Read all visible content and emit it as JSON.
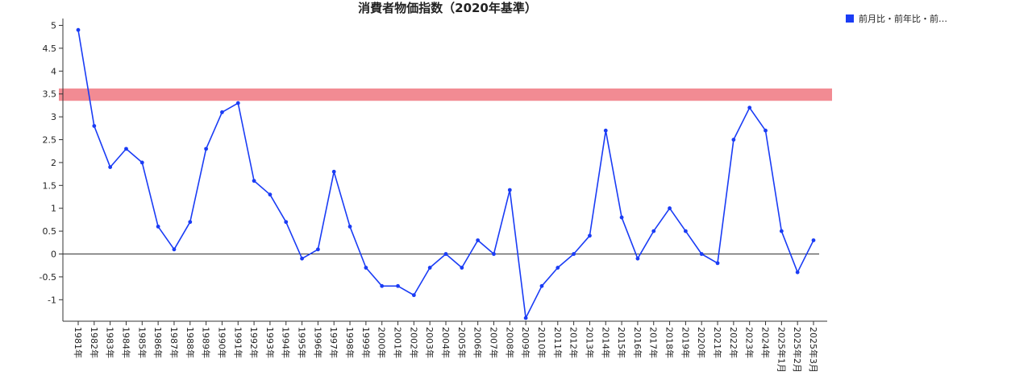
{
  "chart_data": {
    "type": "line",
    "title": "消費者物価指数（2020年基準）",
    "categories": [
      "1981年",
      "1982年",
      "1983年",
      "1984年",
      "1985年",
      "1986年",
      "1987年",
      "1988年",
      "1989年",
      "1990年",
      "1991年",
      "1992年",
      "1993年",
      "1994年",
      "1995年",
      "1996年",
      "1997年",
      "1998年",
      "1999年",
      "2000年",
      "2001年",
      "2002年",
      "2003年",
      "2004年",
      "2005年",
      "2006年",
      "2007年",
      "2008年",
      "2009年",
      "2010年",
      "2011年",
      "2012年",
      "2013年",
      "2014年",
      "2015年",
      "2016年",
      "2017年",
      "2018年",
      "2019年",
      "2020年",
      "2021年",
      "2022年",
      "2023年",
      "2024年",
      "2025年1月",
      "2025年2月",
      "2025年3月"
    ],
    "series": [
      {
        "name": "前月比・前年比・前…",
        "color": "#1a3cf5",
        "values": [
          4.9,
          2.8,
          1.9,
          2.3,
          2.0,
          0.6,
          0.1,
          0.7,
          2.3,
          3.1,
          3.3,
          1.6,
          1.3,
          0.7,
          -0.1,
          0.1,
          1.8,
          0.6,
          -0.3,
          -0.7,
          -0.7,
          -0.9,
          -0.3,
          0.0,
          -0.3,
          0.3,
          0.0,
          1.4,
          -1.4,
          -0.7,
          -0.3,
          0.0,
          0.4,
          2.7,
          0.8,
          -0.1,
          0.5,
          1.0,
          0.5,
          0.0,
          -0.2,
          2.5,
          3.2,
          2.7,
          0.5,
          -0.4,
          0.3
        ]
      }
    ],
    "y_ticks": [
      "5",
      "4.5",
      "4",
      "3.5",
      "3",
      "2.5",
      "2",
      "1.5",
      "1",
      "0.5",
      "0",
      "-0.5",
      "-1"
    ],
    "ylim": [
      -1.47,
      5.15
    ],
    "reference_band": {
      "from": 3.35,
      "to": 3.62,
      "color": "#f28b93"
    },
    "zero_line": true,
    "grid": false,
    "legend_position": "top-right"
  }
}
